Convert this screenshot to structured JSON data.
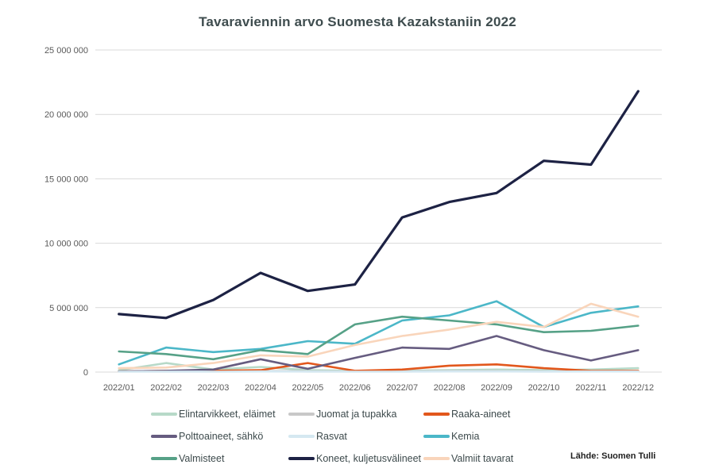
{
  "footer": {
    "source_label": "Lähde: Suomen Tulli"
  },
  "chart_data": {
    "type": "line",
    "title": "Tavaraviennin arvo Suomesta Kazakstaniin 2022",
    "xlabel": "",
    "ylabel": "",
    "ylim": [
      0,
      25000000
    ],
    "grid": "horizontal",
    "legend_position": "bottom",
    "gridline_color": "#d9d9d9",
    "tick_label_color": "#595959",
    "x_categories": [
      "2022/01",
      "2022/02",
      "2022/03",
      "2022/04",
      "2022/05",
      "2022/06",
      "2022/07",
      "2022/08",
      "2022/09",
      "2022/10",
      "2022/11",
      "2022/12"
    ],
    "y_ticks": [
      {
        "value": 0,
        "label": "0"
      },
      {
        "value": 5000000,
        "label": "5 000 000"
      },
      {
        "value": 10000000,
        "label": "10 000 000"
      },
      {
        "value": 15000000,
        "label": "15 000 000"
      },
      {
        "value": 20000000,
        "label": "20 000 000"
      },
      {
        "value": 25000000,
        "label": "25 000 000"
      }
    ],
    "series": [
      {
        "name": "Elintarvikkeet, eläimet",
        "color": "#b7d9c8",
        "values": [
          150000,
          700000,
          200000,
          400000,
          150000,
          100000,
          100000,
          150000,
          200000,
          150000,
          200000,
          300000
        ]
      },
      {
        "name": "Juomat ja tupakka",
        "color": "#c8c8c8",
        "values": [
          50000,
          80000,
          60000,
          80000,
          60000,
          50000,
          60000,
          80000,
          80000,
          60000,
          80000,
          80000
        ]
      },
      {
        "name": "Raaka-aineet",
        "color": "#e2571c",
        "values": [
          50000,
          100000,
          100000,
          150000,
          700000,
          100000,
          200000,
          500000,
          600000,
          300000,
          100000,
          100000
        ]
      },
      {
        "name": "Polttoaineet, sähkö",
        "color": "#665c80",
        "values": [
          50000,
          100000,
          200000,
          1000000,
          250000,
          1100000,
          1900000,
          1800000,
          2800000,
          1700000,
          900000,
          1700000
        ]
      },
      {
        "name": "Rasvat",
        "color": "#d5e8f1",
        "values": [
          30000,
          40000,
          30000,
          50000,
          40000,
          30000,
          30000,
          50000,
          50000,
          40000,
          50000,
          50000
        ]
      },
      {
        "name": "Kemia",
        "color": "#4bb7c8",
        "values": [
          600000,
          1900000,
          1550000,
          1800000,
          2400000,
          2200000,
          4000000,
          4400000,
          5500000,
          3500000,
          4600000,
          5100000
        ]
      },
      {
        "name": "Valmisteet",
        "color": "#56a187",
        "values": [
          1600000,
          1400000,
          1000000,
          1700000,
          1400000,
          3700000,
          4300000,
          4000000,
          3700000,
          3100000,
          3200000,
          3600000
        ]
      },
      {
        "name": "Koneet, kuljetusvälineet",
        "color": "#1d2244",
        "values": [
          4500000,
          4200000,
          5600000,
          7700000,
          6300000,
          6800000,
          12000000,
          13200000,
          13900000,
          16400000,
          16100000,
          21800000
        ]
      },
      {
        "name": "Valmiit tavarat",
        "color": "#f9d5bb",
        "values": [
          300000,
          350000,
          700000,
          1300000,
          1200000,
          2100000,
          2800000,
          3300000,
          3900000,
          3500000,
          5300000,
          4300000
        ]
      }
    ]
  }
}
